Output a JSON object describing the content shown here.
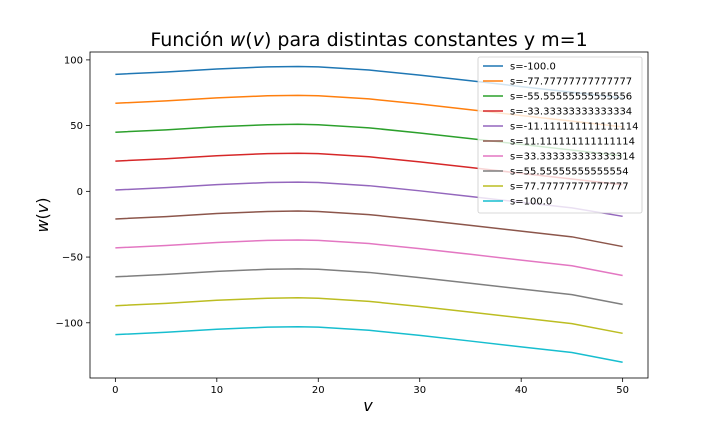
{
  "chart_data": {
    "type": "line",
    "title": "Función w(v) para distintas constantes y m=1",
    "title_parts": {
      "prefix": "Función ",
      "func": "w",
      "open": "(",
      "var": "v",
      "close": ")",
      "suffix": " para distintas constantes y m=1"
    },
    "xlabel": "v",
    "ylabel": "w(v)",
    "ylabel_parts": {
      "func": "w",
      "open": "(",
      "var": "v",
      "close": ")"
    },
    "xlim": [
      -2.5,
      52.5
    ],
    "ylim": [
      -142,
      106
    ],
    "xticks": [
      0,
      10,
      20,
      30,
      40,
      50
    ],
    "yticks": [
      -100,
      -50,
      0,
      50,
      100
    ],
    "ytick_labels": [
      "−100",
      "−50",
      "0",
      "50",
      "100"
    ],
    "grid": false,
    "legend_position": "top-right",
    "x": [
      0,
      5,
      10,
      15,
      18,
      20,
      25,
      30,
      35,
      40,
      45,
      50
    ],
    "series": [
      {
        "name": "s=-100.0",
        "color": "#1f77b4",
        "values": [
          89,
          90.8,
          93.1,
          94.7,
          95,
          94.7,
          92.3,
          88.4,
          84.1,
          79.7,
          75.4,
          71
        ]
      },
      {
        "name": "s=-77.77777777777777",
        "color": "#ff7f0e",
        "values": [
          67,
          68.8,
          71.1,
          72.7,
          73,
          72.7,
          70.3,
          66.4,
          62.1,
          57.7,
          53.4,
          49
        ]
      },
      {
        "name": "s=-55.55555555555556",
        "color": "#2ca02c",
        "values": [
          45,
          46.8,
          49.1,
          50.7,
          51,
          50.7,
          48.3,
          44.4,
          40.1,
          35.7,
          31.4,
          27
        ]
      },
      {
        "name": "s=-33.33333333333334",
        "color": "#d62728",
        "values": [
          23,
          24.8,
          27.1,
          28.7,
          29,
          28.7,
          26.3,
          22.4,
          18.1,
          13.7,
          9.4,
          5
        ]
      },
      {
        "name": "s=-11.111111111111114",
        "color": "#9467bd",
        "values": [
          1,
          2.8,
          5.1,
          6.7,
          7,
          6.7,
          4.3,
          0.4,
          -3.9,
          -8.3,
          -12.6,
          -19
        ]
      },
      {
        "name": "s=11.111111111111114",
        "color": "#8c564b",
        "values": [
          -21,
          -19.2,
          -16.9,
          -15.3,
          -15,
          -15.3,
          -17.7,
          -21.6,
          -25.9,
          -30.3,
          -34.6,
          -42
        ]
      },
      {
        "name": "s=33.333333333333314",
        "color": "#e377c2",
        "values": [
          -43,
          -41.2,
          -38.9,
          -37.3,
          -37,
          -37.3,
          -39.7,
          -43.6,
          -47.9,
          -52.3,
          -56.6,
          -64
        ]
      },
      {
        "name": "s=55.55555555555554",
        "color": "#7f7f7f",
        "values": [
          -65,
          -63.2,
          -60.9,
          -59.3,
          -59,
          -59.3,
          -61.7,
          -65.6,
          -69.9,
          -74.3,
          -78.6,
          -86
        ]
      },
      {
        "name": "s=77.77777777777777",
        "color": "#bcbd22",
        "values": [
          -87,
          -85.2,
          -82.9,
          -81.3,
          -81,
          -81.3,
          -83.7,
          -87.6,
          -91.9,
          -96.3,
          -100.6,
          -108
        ]
      },
      {
        "name": "s=100.0",
        "color": "#17becf",
        "values": [
          -109,
          -107.2,
          -104.9,
          -103.3,
          -103,
          -103.3,
          -105.7,
          -109.6,
          -113.9,
          -118.3,
          -122.6,
          -130
        ]
      }
    ]
  }
}
